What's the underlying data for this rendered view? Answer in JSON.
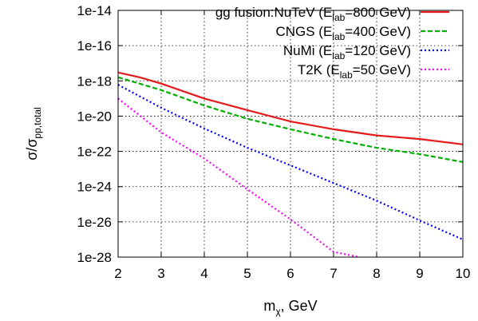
{
  "chart_data": {
    "type": "line",
    "title": "",
    "xlabel": {
      "main": "m",
      "sub": "χ",
      "rest": ", GeV"
    },
    "ylabel": {
      "main": "σ/σ",
      "sub": "pp,total"
    },
    "xlim": [
      2,
      10
    ],
    "ylim_log10": [
      -28,
      -14
    ],
    "y_scale": "log",
    "grid": true,
    "legend_position": "top-right",
    "x_ticks": [
      2,
      3,
      4,
      5,
      6,
      7,
      8,
      9,
      10
    ],
    "x_tick_labels": [
      "2",
      "3",
      "4",
      "5",
      "6",
      "7",
      "8",
      "9",
      "10"
    ],
    "y_ticks_log10": [
      -28,
      -26,
      -24,
      -22,
      -20,
      -18,
      -16,
      -14
    ],
    "y_tick_labels": [
      "1e-28",
      "1e-26",
      "1e-24",
      "1e-22",
      "1e-20",
      "1e-18",
      "1e-16",
      "1e-14"
    ],
    "series": [
      {
        "legend": {
          "pre": "gg fusion:NuTeV (E",
          "sub": "lab",
          "post": "=800 GeV)"
        },
        "color": "#e41a1c",
        "dash": "solid",
        "x": [
          2,
          2.5,
          3,
          4,
          5,
          6,
          7,
          8,
          9,
          10
        ],
        "y": [
          3e-18,
          1.6e-18,
          7e-19,
          1e-19,
          2.2e-20,
          5e-21,
          1.8e-21,
          8e-22,
          5e-22,
          2.5e-22
        ]
      },
      {
        "legend": {
          "pre": "CNGS (E",
          "sub": "lab",
          "post": "=400 GeV)"
        },
        "color": "#00b000",
        "dash": "dashed",
        "x": [
          2,
          3,
          4,
          5,
          6,
          7,
          8,
          9,
          10
        ],
        "y": [
          1.6e-18,
          3e-19,
          4e-20,
          7e-21,
          1.8e-21,
          5e-22,
          1.6e-22,
          7e-23,
          2.5e-23
        ]
      },
      {
        "legend": {
          "pre": "NuMi (E",
          "sub": "lab",
          "post": "=120 GeV)"
        },
        "color": "#0000ff",
        "dash": "dotted",
        "x": [
          2,
          3,
          4,
          5,
          6,
          7,
          8,
          9,
          10
        ],
        "y": [
          6e-19,
          3e-20,
          2e-21,
          1.6e-22,
          1.6e-23,
          1.6e-24,
          1.6e-25,
          1.2e-26,
          1e-27
        ]
      },
      {
        "legend": {
          "pre": "T2K (E",
          "sub": "lab",
          "post": "=50 GeV)"
        },
        "color": "#ff00ff",
        "dash": "dotted",
        "x": [
          2,
          3,
          4,
          5,
          6,
          7,
          7.6
        ],
        "y": [
          1e-19,
          1.2e-21,
          4e-23,
          7e-25,
          1.4e-26,
          2e-28,
          1e-28
        ]
      }
    ]
  }
}
